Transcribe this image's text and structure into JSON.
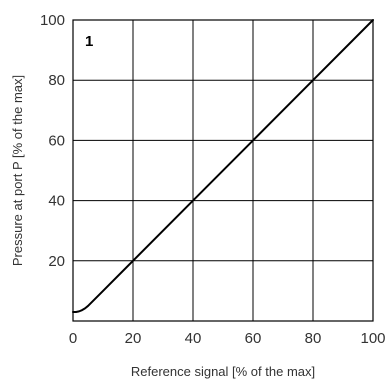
{
  "chart_data": {
    "type": "line",
    "panel_label": "1",
    "xlabel": "Reference signal [% of the max]",
    "ylabel": "Pressure at port P [% of the max]",
    "xlim": [
      0,
      100
    ],
    "ylim": [
      0,
      100
    ],
    "x_ticks": [
      0,
      20,
      40,
      60,
      80,
      100
    ],
    "y_ticks": [
      20,
      40,
      60,
      80,
      100
    ],
    "grid": true,
    "series": [
      {
        "x": [
          0,
          1,
          2,
          3,
          4,
          5,
          6,
          8,
          10,
          20,
          40,
          60,
          80,
          100
        ],
        "y": [
          3,
          3,
          3.2,
          3.6,
          4.2,
          5,
          6,
          8,
          10,
          20,
          40,
          60,
          80,
          100
        ],
        "color": "#000000"
      }
    ]
  }
}
